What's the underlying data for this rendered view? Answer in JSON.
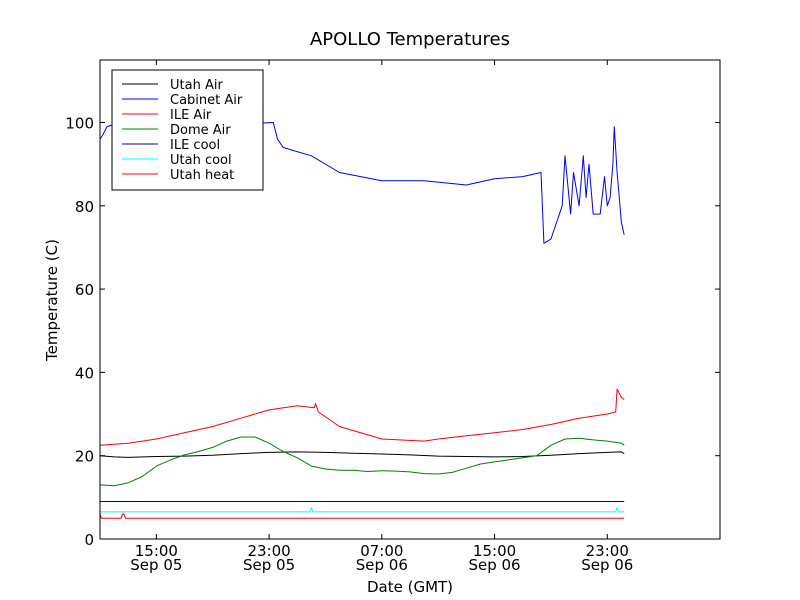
{
  "chart_data": {
    "type": "line",
    "title": "APOLLO Temperatures",
    "xlabel": "Date (GMT)",
    "ylabel": "Temperature (C)",
    "xlim": [
      0,
      44
    ],
    "ylim": [
      0,
      115
    ],
    "yticks": [
      0,
      20,
      40,
      60,
      80,
      100
    ],
    "xticks": [
      {
        "x": 4,
        "line1": "15:00",
        "line2": "Sep 05"
      },
      {
        "x": 12,
        "line1": "23:00",
        "line2": "Sep 05"
      },
      {
        "x": 20,
        "line1": "07:00",
        "line2": "Sep 06"
      },
      {
        "x": 28,
        "line1": "15:00",
        "line2": "Sep 06"
      },
      {
        "x": 36,
        "line1": "23:00",
        "line2": "Sep 06"
      }
    ],
    "legend_position": "top-left",
    "series": [
      {
        "name": "Utah Air",
        "color": "#000000",
        "x": [
          0,
          1,
          2,
          4,
          6,
          8,
          10,
          12,
          14,
          16,
          18,
          20,
          22,
          24,
          26,
          28,
          30,
          32,
          34,
          36,
          37,
          37.2
        ],
        "y": [
          20,
          19.7,
          19.6,
          19.8,
          19.9,
          20.1,
          20.5,
          20.8,
          20.9,
          20.8,
          20.6,
          20.4,
          20.2,
          19.9,
          19.8,
          19.7,
          19.8,
          20.1,
          20.5,
          20.8,
          20.9,
          20.5
        ]
      },
      {
        "name": "Cabinet Air",
        "color": "#0000ff",
        "x": [
          0,
          0.2,
          0.5,
          1,
          3,
          6,
          9,
          11,
          12.3,
          12.6,
          13,
          15,
          17,
          20,
          23,
          26,
          28,
          30,
          31.3,
          31.5,
          32,
          32.8,
          33,
          33.4,
          33.6,
          34,
          34.3,
          34.5,
          34.7,
          35,
          35.5,
          35.8,
          36,
          36.2,
          36.4,
          36.5,
          36.7,
          36.9,
          37.0,
          37.2
        ],
        "y": [
          96,
          97,
          99,
          99.5,
          99.6,
          99.7,
          99.8,
          99.8,
          100,
          96,
          94,
          92,
          88,
          86,
          86,
          85,
          86.5,
          87,
          88,
          71,
          72,
          80,
          92,
          78,
          88,
          80,
          92,
          82,
          90,
          78,
          78,
          87,
          80,
          82,
          90,
          99,
          88,
          80,
          76,
          73
        ]
      },
      {
        "name": "ILE Air",
        "color": "#ff0000",
        "x": [
          0,
          2,
          4,
          6,
          8,
          10,
          12,
          14,
          15.2,
          15.3,
          15.5,
          17,
          20,
          23,
          24,
          26,
          28,
          30,
          32,
          34,
          36,
          36.6,
          36.7,
          37,
          37.2
        ],
        "y": [
          22.5,
          23,
          24,
          25.5,
          27,
          29,
          31,
          32,
          31.5,
          32.5,
          30.5,
          27,
          24,
          23.5,
          24,
          24.8,
          25.5,
          26.3,
          27.5,
          29,
          30,
          30.5,
          36,
          34,
          33.5
        ]
      },
      {
        "name": "Dome Air",
        "color": "#008000",
        "x": [
          0,
          1,
          2,
          3,
          4,
          5,
          6,
          7,
          8,
          9,
          10,
          11,
          12,
          13,
          14,
          15,
          16,
          17,
          18,
          19,
          20,
          21,
          22,
          23,
          24,
          25,
          26,
          27,
          28,
          29,
          30,
          31,
          32,
          33,
          34,
          35,
          36,
          37,
          37.2
        ],
        "y": [
          13,
          12.8,
          13.5,
          15,
          17.5,
          19,
          20.2,
          21,
          22,
          23.5,
          24.5,
          24.5,
          23,
          21,
          19.5,
          17.5,
          16.8,
          16.5,
          16.5,
          16.2,
          16.4,
          16.3,
          16.1,
          15.7,
          15.6,
          16,
          17,
          18,
          18.5,
          19,
          19.5,
          20,
          22.5,
          24,
          24.2,
          23.8,
          23.5,
          23,
          22.5
        ]
      },
      {
        "name": "ILE cool",
        "color": "#000080",
        "x": [
          0,
          37.2
        ],
        "y": [
          9,
          9
        ]
      },
      {
        "name": "Utah cool",
        "color": "#00ffff",
        "x": [
          0,
          0.1,
          0.2,
          14.9,
          15,
          15.1,
          15.2,
          36.6,
          36.7,
          36.8,
          37.2
        ],
        "y": [
          6.5,
          6.5,
          6.5,
          6.5,
          7.5,
          6.5,
          6.5,
          6.5,
          7.5,
          6.5,
          6.5
        ]
      },
      {
        "name": "Utah heat",
        "color": "#ff0000",
        "x": [
          0,
          0.1,
          0.2,
          1.5,
          1.6,
          1.7,
          1.8,
          37.2
        ],
        "y": [
          6,
          5,
          5,
          5,
          6,
          6,
          5,
          5
        ]
      }
    ]
  }
}
